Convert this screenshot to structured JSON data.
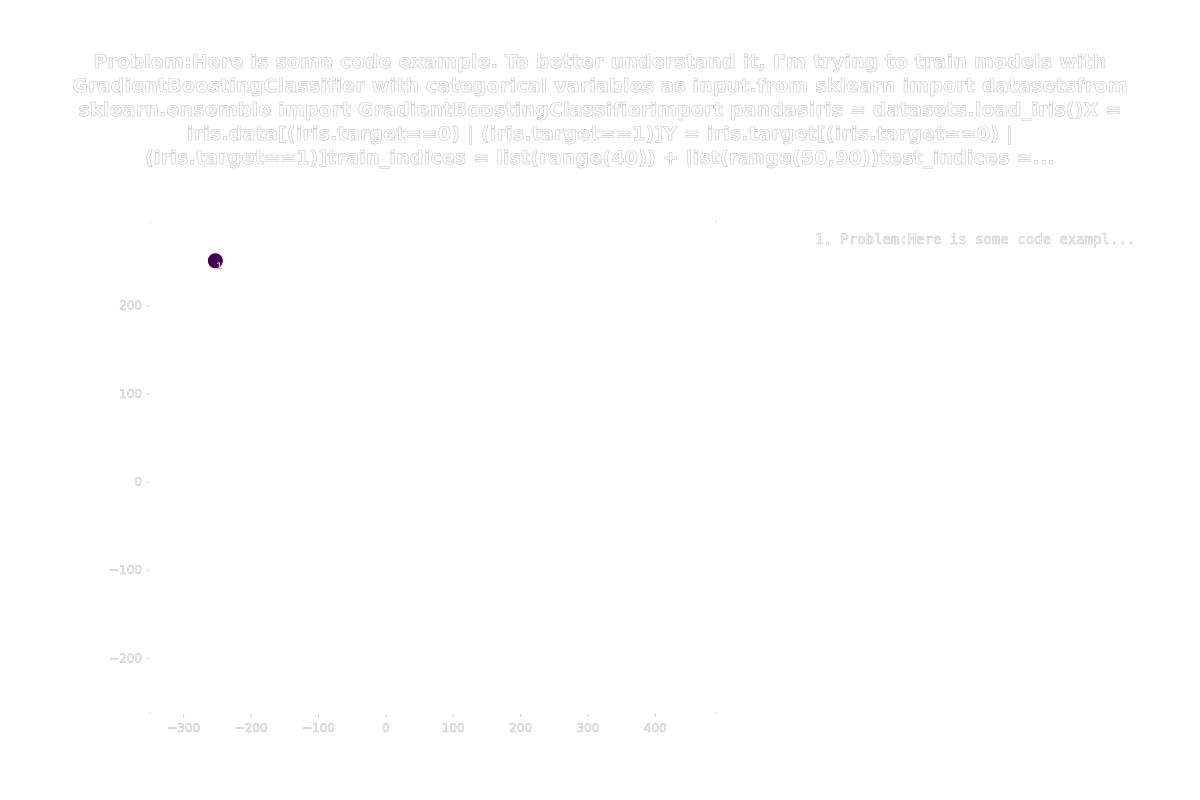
{
  "chart_data": {
    "type": "scatter",
    "title": "Problem:Here is some code example. To better understand it, I'm trying to train models with GradientBoostingClassifier with categorical variables as input.from sklearn import datasetsfrom sklearn.ensemble import GradientBoostingClassifierimport pandasiris = datasets.load_iris()X = iris.data[(iris.target==0) | (iris.target==1)]Y = iris.target[(iris.target==0) | (iris.target==1)]train_indices = list(range(40)) + list(range(50,90))test_indices =...",
    "xlabel": "",
    "ylabel": "",
    "xlim": [
      -350,
      490
    ],
    "ylim": [
      -262,
      295
    ],
    "x_ticks": [
      -300,
      -200,
      -100,
      0,
      100,
      200,
      300,
      400
    ],
    "x_tick_labels": [
      "−300",
      "−200",
      "−100",
      "0",
      "100",
      "200",
      "300",
      "400"
    ],
    "y_ticks": [
      200,
      100,
      0,
      -100,
      -200
    ],
    "y_tick_labels": [
      "200",
      "100",
      "0",
      "−100",
      "−200"
    ],
    "legend": {
      "placement": "top-right",
      "entries": [
        "1. Problem:Here is some code exampl..."
      ]
    },
    "series": [
      {
        "name": "1. Problem:Here is some code exampl...",
        "color": "#440154",
        "points": [
          {
            "x": -253,
            "y": 251,
            "label": "1"
          }
        ]
      }
    ],
    "grid": false
  }
}
